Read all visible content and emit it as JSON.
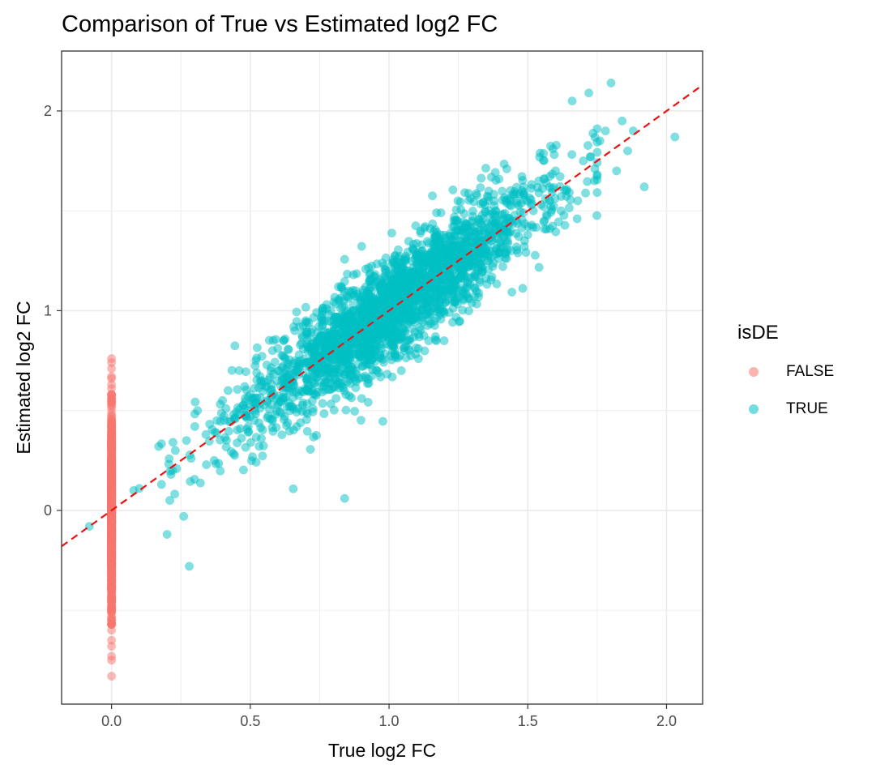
{
  "chart_data": {
    "type": "scatter",
    "title": "Comparison of True vs Estimated log2 FC",
    "xlabel": "True log2 FC",
    "ylabel": "Estimated log2 FC",
    "xlim": [
      -0.18,
      2.13
    ],
    "ylim": [
      -0.97,
      2.3
    ],
    "x_ticks": [
      {
        "value": 0.0,
        "label": "0.0"
      },
      {
        "value": 0.5,
        "label": "0.5"
      },
      {
        "value": 1.0,
        "label": "1.0"
      },
      {
        "value": 1.5,
        "label": "1.5"
      },
      {
        "value": 2.0,
        "label": "2.0"
      }
    ],
    "y_ticks": [
      {
        "value": 0,
        "label": "0"
      },
      {
        "value": 1,
        "label": "1"
      },
      {
        "value": 2,
        "label": "2"
      }
    ],
    "reference_line": {
      "slope": 1,
      "intercept": 0,
      "style": "dashed",
      "color": "#ee1111"
    },
    "legend": {
      "title": "isDE",
      "placement": "right",
      "entries": [
        {
          "label": "FALSE",
          "color": "#f8766d"
        },
        {
          "label": "TRUE",
          "color": "#00bfc4"
        }
      ]
    },
    "series": [
      {
        "name": "FALSE",
        "color": "#f8766d",
        "x_constant": 0.0,
        "y": [
          0.76,
          0.74,
          0.71,
          0.67,
          0.66,
          0.63,
          0.61,
          0.58,
          0.56,
          0.55,
          0.53,
          0.51,
          0.49,
          0.47,
          0.45,
          0.43,
          0.41,
          0.39,
          0.37,
          0.35,
          0.33,
          0.31,
          0.29,
          0.27,
          0.25,
          0.23,
          0.21,
          0.19,
          0.17,
          0.15,
          0.13,
          0.11,
          0.09,
          0.07,
          0.05,
          0.03,
          0.01,
          -0.01,
          -0.03,
          -0.05,
          -0.07,
          -0.09,
          -0.11,
          -0.13,
          -0.15,
          -0.17,
          -0.19,
          -0.21,
          -0.23,
          -0.25,
          -0.27,
          -0.29,
          -0.31,
          -0.33,
          -0.35,
          -0.37,
          -0.39,
          -0.41,
          -0.43,
          -0.45,
          -0.47,
          -0.49,
          -0.51,
          -0.53,
          -0.55,
          -0.57,
          -0.6,
          -0.65,
          -0.68,
          -0.73,
          -0.75,
          -0.83
        ]
      },
      {
        "name": "TRUE",
        "color": "#00bfc4",
        "x": [
          -0.08,
          0.08,
          0.1,
          0.17,
          0.2,
          0.21,
          0.22,
          0.23,
          0.26,
          0.27,
          0.28,
          0.3,
          0.31,
          0.34,
          0.37,
          0.38,
          0.4,
          0.42,
          0.44,
          0.46,
          0.48,
          0.5,
          0.52,
          0.54,
          0.56,
          0.58,
          0.6,
          0.62,
          0.64,
          0.66,
          0.68,
          0.7,
          0.72,
          0.74,
          0.76,
          0.78,
          0.8,
          0.82,
          0.84,
          0.85,
          0.86,
          0.88,
          0.9,
          0.92,
          0.94,
          0.96,
          0.98,
          1.0,
          1.02,
          1.04,
          1.06,
          1.08,
          1.1,
          1.12,
          1.14,
          1.16,
          1.18,
          1.2,
          1.22,
          1.24,
          1.26,
          1.28,
          1.3,
          1.32,
          1.34,
          1.36,
          1.38,
          1.4,
          1.42,
          1.44,
          1.46,
          1.48,
          1.5,
          1.52,
          1.54,
          1.56,
          1.58,
          1.6,
          1.62,
          1.64,
          1.66,
          1.68,
          1.7,
          1.72,
          1.74,
          1.76,
          1.78,
          1.8,
          1.82,
          1.84,
          1.86,
          1.88,
          1.92,
          2.03
        ],
        "y": [
          -0.08,
          0.1,
          0.11,
          0.32,
          -0.12,
          0.05,
          0.2,
          0.3,
          -0.03,
          0.35,
          -0.28,
          0.42,
          0.5,
          0.38,
          0.25,
          0.45,
          0.55,
          0.6,
          0.48,
          0.7,
          0.62,
          0.58,
          0.75,
          0.65,
          0.55,
          0.8,
          0.7,
          0.85,
          0.6,
          0.9,
          0.75,
          0.95,
          0.82,
          0.7,
          1.0,
          0.85,
          0.9,
          1.05,
          0.06,
          0.78,
          0.95,
          1.1,
          0.88,
          1.0,
          1.15,
          0.92,
          1.05,
          1.2,
          0.98,
          1.1,
          1.25,
          1.0,
          1.15,
          1.3,
          1.05,
          1.2,
          1.35,
          1.1,
          1.25,
          1.4,
          1.18,
          1.3,
          1.45,
          1.2,
          1.35,
          1.5,
          1.28,
          1.4,
          1.55,
          1.3,
          1.45,
          1.6,
          1.38,
          1.5,
          1.65,
          1.45,
          1.55,
          1.7,
          1.5,
          1.6,
          2.05,
          1.55,
          1.75,
          2.09,
          1.65,
          1.85,
          1.9,
          2.14,
          1.7,
          1.95,
          1.8,
          1.9,
          1.62,
          1.87
        ]
      }
    ],
    "true_cluster": {
      "x_center": 1.0,
      "slope": 1.0,
      "x_sd": 0.27,
      "residual_sd": 0.13,
      "n": 2500
    }
  }
}
